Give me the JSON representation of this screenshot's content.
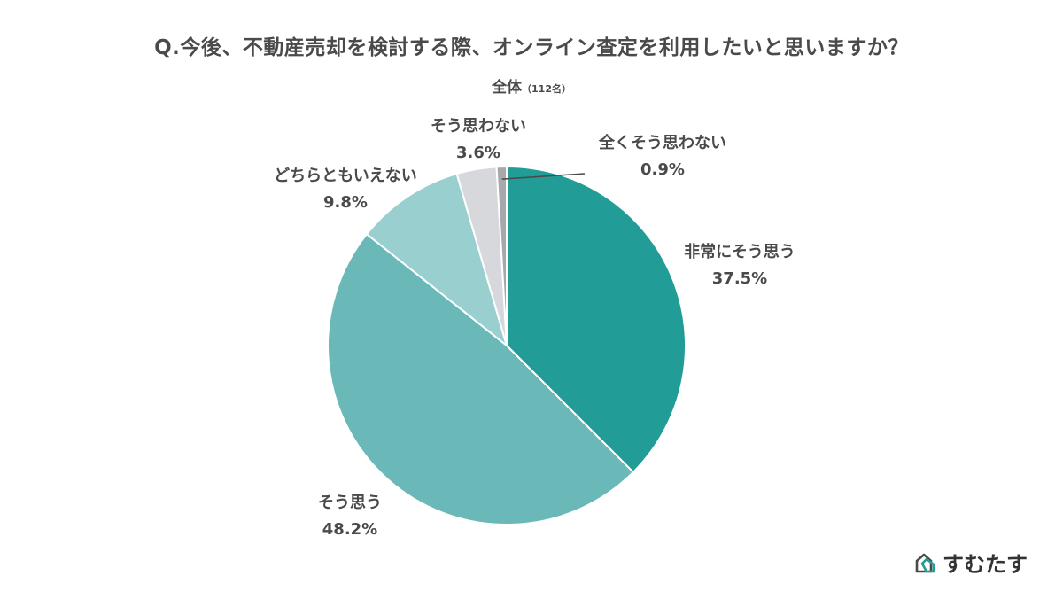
{
  "chart_data": {
    "type": "pie",
    "title": "Q.今後、不動産売却を検討する際、オンライン査定を利用したいと思いますか？",
    "subtitle": "全体",
    "sample": "（112名）",
    "slices": [
      {
        "label": "非常にそう思う",
        "value": 37.5,
        "value_label": "37.5%",
        "color": "#229c96"
      },
      {
        "label": "そう思う",
        "value": 48.2,
        "value_label": "48.2%",
        "color": "#6ab9b8"
      },
      {
        "label": "どちらともいえない",
        "value": 9.8,
        "value_label": "9.8%",
        "color": "#9acfd0"
      },
      {
        "label": "そう思わない",
        "value": 3.6,
        "value_label": "3.6%",
        "color": "#d6d8dc"
      },
      {
        "label": "全くそう思わない",
        "value": 0.9,
        "value_label": "0.9%",
        "color": "#a6a8ab"
      }
    ],
    "start": "top",
    "direction": "clockwise"
  },
  "brand": {
    "name": "すむたす",
    "logo_icon": "house-logo-icon"
  }
}
